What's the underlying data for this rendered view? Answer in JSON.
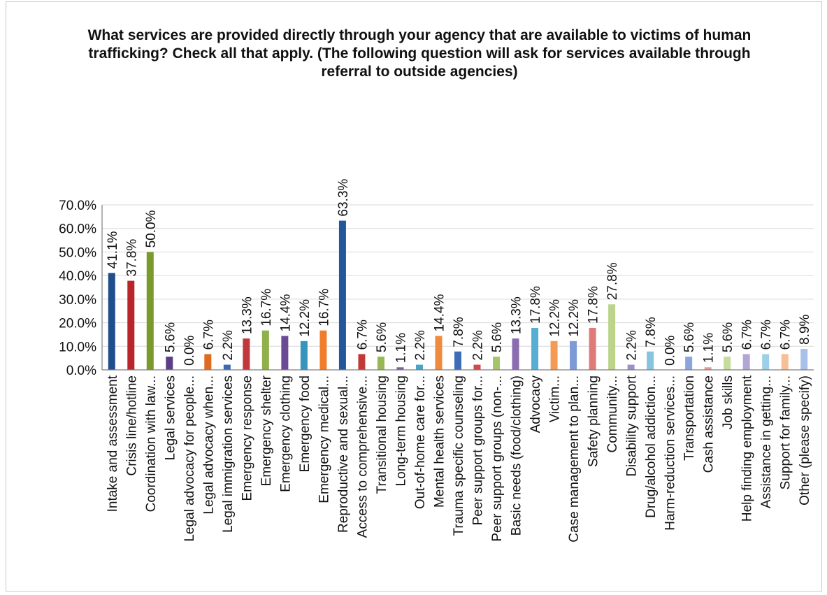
{
  "chart_data": {
    "type": "bar",
    "title": "What services are provided directly through your agency that are available to victims of human trafficking? Check all that apply.    (The following question will ask for services available through referral to outside agencies)",
    "xlabel": "",
    "ylabel": "",
    "ylim": [
      0,
      70
    ],
    "yticks": [
      "0.0%",
      "10.0%",
      "20.0%",
      "30.0%",
      "40.0%",
      "50.0%",
      "60.0%",
      "70.0%"
    ],
    "grid": true,
    "legend": "none",
    "categories": [
      "Intake and assessment",
      "Crisis line/hotline",
      "Coordination with law...",
      "Legal services",
      "Legal advocacy for people...",
      "Legal advocacy when...",
      "Legal immigration services",
      "Emergency response",
      "Emergency shelter",
      "Emergency clothing",
      "Emergency food",
      "Emergency medical...",
      "Reproductive and sexual...",
      "Access to comprehensive...",
      "Transitional housing",
      "Long-term housing",
      "Out-of-home care for...",
      "Mental health services",
      "Trauma specific counseling",
      "Peer support groups for...",
      "Peer support groups (non-...",
      "Basic needs (food/clothing)",
      "Advocacy",
      "Victim...",
      "Case management to plan...",
      "Safety planning",
      "Community...",
      "Disability support",
      "Drug/alcohol addiction...",
      "Harm-reduction services...",
      "Transportation",
      "Cash assistance",
      "Job skills",
      "Help finding employment",
      "Assistance in getting...",
      "Support for family...",
      "Other (please specify)"
    ],
    "values": [
      41.1,
      37.8,
      50.0,
      5.6,
      0.0,
      6.7,
      2.2,
      13.3,
      16.7,
      14.4,
      12.2,
      16.7,
      63.3,
      6.7,
      5.6,
      1.1,
      2.2,
      14.4,
      7.8,
      2.2,
      5.6,
      13.3,
      17.8,
      12.2,
      12.2,
      17.8,
      27.8,
      2.2,
      7.8,
      0.0,
      5.6,
      1.1,
      5.6,
      6.7,
      6.7,
      6.7,
      8.9
    ],
    "data_labels": [
      "41.1%",
      "37.8%",
      "50.0%",
      "5.6%",
      "0.0%",
      "6.7%",
      "2.2%",
      "13.3%",
      "16.7%",
      "14.4%",
      "12.2%",
      "16.7%",
      "63.3%",
      "6.7%",
      "5.6%",
      "1.1%",
      "2.2%",
      "14.4%",
      "7.8%",
      "2.2%",
      "5.6%",
      "13.3%",
      "17.8%",
      "12.2%",
      "12.2%",
      "17.8%",
      "27.8%",
      "2.2%",
      "7.8%",
      "0.0%",
      "5.6%",
      "1.1%",
      "5.6%",
      "6.7%",
      "6.7%",
      "6.7%",
      "8.9%"
    ],
    "colors": [
      "#1f4e8c",
      "#b8262b",
      "#7a9a2e",
      "#5b3f86",
      "#2f86ad",
      "#e06b1f",
      "#3f66b0",
      "#c0383c",
      "#8fb04a",
      "#6b4a94",
      "#3795bd",
      "#f07d2c",
      "#24569c",
      "#c23a38",
      "#98b855",
      "#7d5ea3",
      "#4aa3c9",
      "#f08a3c",
      "#3c6db5",
      "#d04a48",
      "#a6c46a",
      "#8a6db0",
      "#56aed3",
      "#f39a55",
      "#7b9ad6",
      "#e07a78",
      "#bcd38c",
      "#a08fc4",
      "#87c4e0",
      "#f5b07a",
      "#8aa6dc",
      "#e89a98",
      "#c6dc9c",
      "#b3a6d4",
      "#9dd0e8",
      "#f7bf95",
      "#a9c0e8"
    ]
  }
}
